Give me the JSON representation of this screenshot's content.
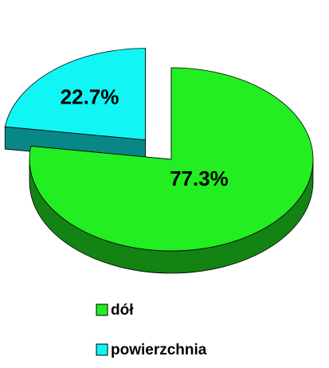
{
  "chart_data": {
    "type": "pie",
    "categories": [
      "dół",
      "powierzchnia"
    ],
    "values": [
      77.3,
      22.7
    ],
    "value_labels": [
      "77.3%",
      "22.7%"
    ],
    "colors": [
      "#22ee22",
      "#11f5f5"
    ]
  }
}
